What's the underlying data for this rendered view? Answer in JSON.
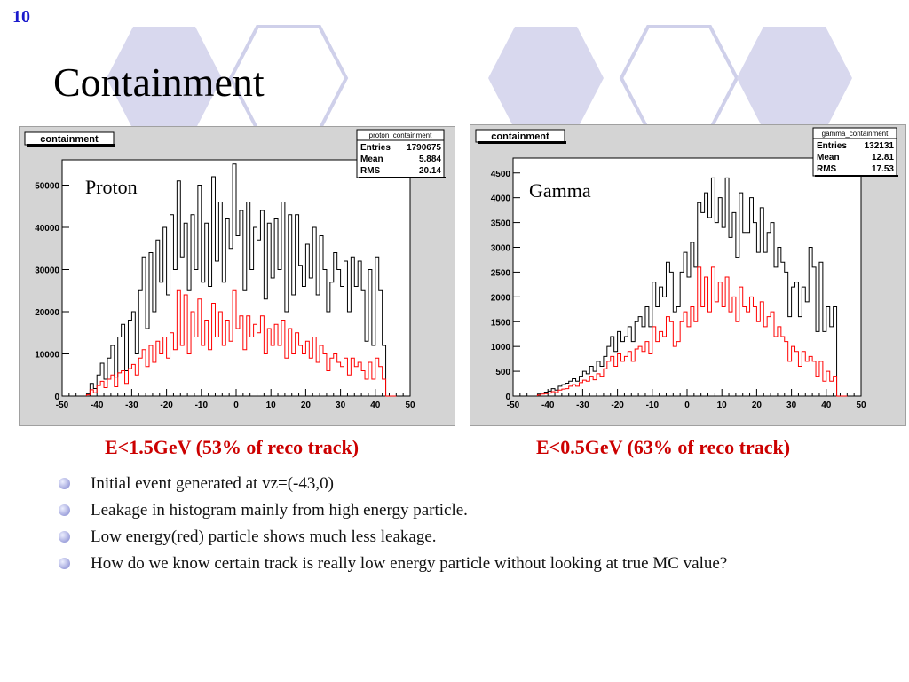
{
  "slide_number": "10",
  "title": "Containment",
  "colors": {
    "slide_number": "#1a1acc",
    "caption": "#cc0000",
    "hex_fill": "#d8d8ee",
    "hex_outline": "#c8c8e6",
    "hist_all": "#000000",
    "hist_low": "#ff0000"
  },
  "plots": {
    "proton": {
      "header": "containment",
      "label": "Proton",
      "stats": {
        "name": "proton_containment",
        "entries_label": "Entries",
        "entries": "1790675",
        "mean_label": "Mean",
        "mean": "5.884",
        "rms_label": "RMS",
        "rms": "20.14"
      },
      "caption": "E<1.5GeV (53% of reco track)"
    },
    "gamma": {
      "header": "containment",
      "label": "Gamma",
      "stats": {
        "name": "gamma_containment",
        "entries_label": "Entries",
        "entries": "132131",
        "mean_label": "Mean",
        "mean": "12.81",
        "rms_label": "RMS",
        "rms": "17.53"
      },
      "caption": "E<0.5GeV (63% of reco track)"
    }
  },
  "chart_data": [
    {
      "type": "bar",
      "title": "containment",
      "xlim": [
        -50,
        50
      ],
      "ylim": [
        0,
        56000
      ],
      "x_ticks": [
        -50,
        -40,
        -30,
        -20,
        -10,
        0,
        10,
        20,
        30,
        40,
        50
      ],
      "y_ticks": [
        0,
        10000,
        20000,
        30000,
        40000,
        50000
      ],
      "y_tick_labels": [
        "0",
        "10000",
        "20000",
        "30000",
        "40000",
        "50000"
      ],
      "x_range_data": [
        -43,
        43
      ],
      "series": [
        {
          "values": [
            500,
            3000,
            1800,
            5000,
            7800,
            4000,
            9000,
            12000,
            4500,
            14000,
            17000,
            6000,
            18000,
            20000,
            10000,
            25000,
            33000,
            16000,
            34000,
            20000,
            37000,
            27000,
            40000,
            24000,
            43000,
            30000,
            51000,
            33000,
            41000,
            25000,
            43000,
            30000,
            50000,
            27000,
            41000,
            26000,
            52000,
            32000,
            46000,
            27000,
            42000,
            35000,
            55000,
            38000,
            44000,
            25000,
            46000,
            30000,
            40000,
            37000,
            44000,
            23000,
            41000,
            28000,
            42000,
            30000,
            46000,
            20000,
            43000,
            24000,
            43000,
            31000,
            26000,
            36000,
            28000,
            40000,
            24000,
            38000,
            30000,
            20000,
            27000,
            34000,
            30000,
            26000,
            32000,
            20000,
            33000,
            26000,
            32000,
            25000,
            13000,
            30000,
            12000,
            33000,
            25000,
            12000
          ]
        },
        {
          "values": [
            300,
            1500,
            800,
            2500,
            3500,
            2000,
            4000,
            5000,
            2200,
            5500,
            6000,
            3000,
            6500,
            7500,
            5000,
            9000,
            11000,
            7000,
            12000,
            8000,
            13000,
            10000,
            14000,
            9000,
            15000,
            11000,
            25000,
            12000,
            24000,
            10000,
            20000,
            14000,
            23000,
            12000,
            18000,
            11000,
            22000,
            14000,
            20000,
            12000,
            18000,
            13000,
            25000,
            16000,
            19000,
            11000,
            19000,
            14000,
            17000,
            15000,
            19000,
            10000,
            16000,
            12000,
            17000,
            12000,
            18000,
            9000,
            16000,
            10000,
            15000,
            12000,
            10000,
            13000,
            9000,
            14000,
            8000,
            12000,
            10000,
            6000,
            9000,
            10000,
            8000,
            7000,
            9000,
            5000,
            9000,
            7000,
            8000,
            6000,
            4000,
            8000,
            4000,
            9000,
            7000,
            4000
          ]
        }
      ]
    },
    {
      "type": "bar",
      "title": "containment",
      "xlim": [
        -50,
        50
      ],
      "ylim": [
        0,
        4800
      ],
      "x_ticks": [
        -50,
        -40,
        -30,
        -20,
        -10,
        0,
        10,
        20,
        30,
        40,
        50
      ],
      "y_ticks": [
        0,
        500,
        1000,
        1500,
        2000,
        2500,
        3000,
        3500,
        4000,
        4500
      ],
      "y_tick_labels": [
        "0",
        "500",
        "1000",
        "1500",
        "2000",
        "2500",
        "3000",
        "3500",
        "4000",
        "4500"
      ],
      "x_range_data": [
        -43,
        43
      ],
      "series": [
        {
          "values": [
            40,
            60,
            80,
            100,
            150,
            120,
            200,
            230,
            260,
            300,
            350,
            300,
            400,
            500,
            450,
            600,
            500,
            700,
            600,
            800,
            1000,
            1200,
            900,
            1300,
            1100,
            1200,
            1400,
            1100,
            1500,
            1600,
            1400,
            1800,
            1400,
            2300,
            1800,
            2200,
            2000,
            2700,
            2500,
            1700,
            1800,
            2500,
            2900,
            2400,
            3100,
            2600,
            3900,
            3700,
            4100,
            3600,
            4400,
            3500,
            4000,
            3400,
            4400,
            3200,
            3700,
            2800,
            4100,
            3300,
            3300,
            4000,
            3500,
            2900,
            3800,
            2900,
            3300,
            3500,
            2600,
            3000,
            2700,
            2500,
            1600,
            2200,
            2300,
            1600,
            2200,
            1900,
            3000,
            2600,
            1300,
            2700,
            1300,
            1800,
            1400,
            1800
          ]
        },
        {
          "values": [
            20,
            40,
            50,
            60,
            90,
            70,
            120,
            140,
            150,
            200,
            230,
            200,
            270,
            320,
            300,
            400,
            330,
            450,
            400,
            550,
            700,
            800,
            600,
            850,
            700,
            800,
            900,
            700,
            950,
            1000,
            900,
            1100,
            850,
            1400,
            1100,
            1300,
            1200,
            1600,
            1500,
            1000,
            1100,
            1500,
            1700,
            1400,
            1800,
            1500,
            2600,
            1800,
            2400,
            1700,
            2600,
            1900,
            2300,
            1800,
            2400,
            1700,
            2000,
            1500,
            2200,
            1800,
            1700,
            2000,
            1800,
            1500,
            1900,
            1400,
            1600,
            1700,
            1200,
            1400,
            1200,
            1100,
            700,
            1000,
            900,
            600,
            900,
            700,
            800,
            700,
            400,
            700,
            300,
            500,
            300,
            400
          ]
        }
      ]
    }
  ],
  "bullets": [
    "Initial event generated at vz=(-43,0)",
    "Leakage in histogram mainly from high energy particle.",
    "Low energy(red) particle shows much less leakage.",
    "How do we know certain track is really low energy particle without looking at true MC value?"
  ]
}
